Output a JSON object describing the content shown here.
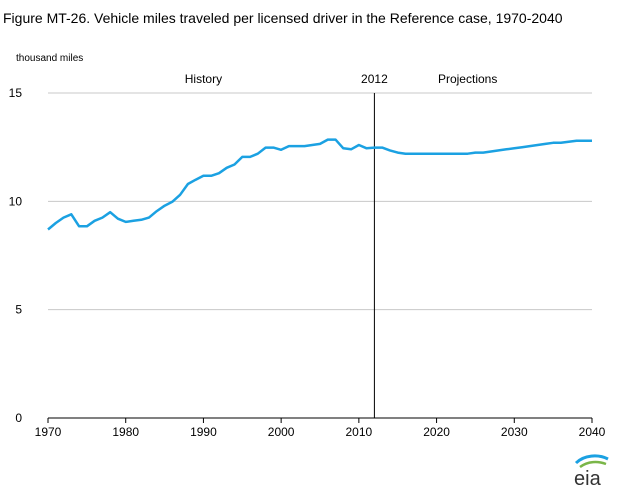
{
  "title": "Figure MT-26. Vehicle miles traveled per licensed driver in the Reference case, 1970-2040",
  "ylabel": "thousand miles",
  "logo_text": "eia",
  "chart_data": {
    "type": "line",
    "title": "Figure MT-26. Vehicle miles traveled per licensed driver in the Reference case, 1970-2040",
    "xlabel": "",
    "ylabel": "thousand miles",
    "xlim": [
      1970,
      2040
    ],
    "ylim": [
      0,
      15
    ],
    "xticks": [
      1970,
      1980,
      1990,
      2000,
      2010,
      2020,
      2030,
      2040
    ],
    "yticks": [
      0,
      5,
      10,
      15
    ],
    "grid": "horizontal",
    "annotations": [
      {
        "text": "History",
        "x": 1990
      },
      {
        "text": "2012",
        "x": 2012,
        "vline": true
      },
      {
        "text": "Projections",
        "x": 2024
      }
    ],
    "series": [
      {
        "color": "#1ba1e2",
        "x": [
          1970,
          1971,
          1972,
          1973,
          1974,
          1975,
          1976,
          1977,
          1978,
          1979,
          1980,
          1981,
          1982,
          1983,
          1984,
          1985,
          1986,
          1987,
          1988,
          1989,
          1990,
          1991,
          1992,
          1993,
          1994,
          1995,
          1996,
          1997,
          1998,
          1999,
          2000,
          2001,
          2002,
          2003,
          2004,
          2005,
          2006,
          2007,
          2008,
          2009,
          2010,
          2011,
          2012,
          2013,
          2014,
          2015,
          2016,
          2017,
          2018,
          2019,
          2020,
          2021,
          2022,
          2023,
          2024,
          2025,
          2026,
          2027,
          2028,
          2029,
          2030,
          2031,
          2032,
          2033,
          2034,
          2035,
          2036,
          2037,
          2038,
          2039,
          2040
        ],
        "values": [
          8.7,
          9.0,
          9.25,
          9.4,
          8.85,
          8.85,
          9.1,
          9.25,
          9.5,
          9.2,
          9.05,
          9.1,
          9.15,
          9.25,
          9.55,
          9.8,
          9.98,
          10.3,
          10.8,
          11.0,
          11.18,
          11.18,
          11.3,
          11.55,
          11.7,
          12.05,
          12.05,
          12.2,
          12.48,
          12.48,
          12.38,
          12.55,
          12.55,
          12.55,
          12.6,
          12.65,
          12.85,
          12.85,
          12.45,
          12.4,
          12.6,
          12.45,
          12.48,
          12.48,
          12.35,
          12.25,
          12.2,
          12.2,
          12.2,
          12.2,
          12.2,
          12.2,
          12.2,
          12.2,
          12.2,
          12.25,
          12.25,
          12.3,
          12.35,
          12.4,
          12.45,
          12.5,
          12.55,
          12.6,
          12.65,
          12.7,
          12.7,
          12.75,
          12.8,
          12.8,
          12.8
        ]
      }
    ]
  }
}
